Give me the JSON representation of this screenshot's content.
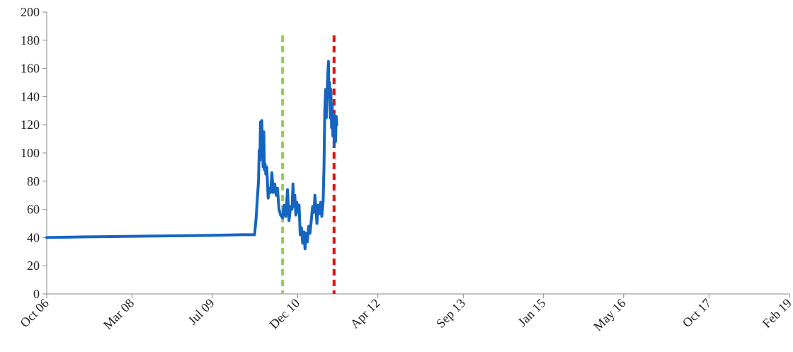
{
  "chart_data": {
    "type": "line",
    "title": "",
    "xlabel": "",
    "ylabel": "",
    "ylim": [
      0,
      200
    ],
    "yticks": [
      0,
      20,
      40,
      60,
      80,
      100,
      120,
      140,
      160,
      180,
      200
    ],
    "xlim": [
      "2006-10-01",
      "2019-02-01"
    ],
    "xtick_labels": [
      "Oct 06",
      "Mar 08",
      "Jul 09",
      "Dec 10",
      "Apr 12",
      "Sep 13",
      "Jan 15",
      "May 16",
      "Oct 17",
      "Feb 19"
    ],
    "xtick_dates": [
      "2006-10-01",
      "2008-03-01",
      "2009-07-01",
      "2010-12-01",
      "2012-04-01",
      "2013-09-01",
      "2015-01-01",
      "2016-05-01",
      "2017-10-01",
      "2019-02-01"
    ],
    "grid": false,
    "legend": "none",
    "series": [
      {
        "color": "#1565C0",
        "points": [
          [
            "2006-10-01",
            40
          ],
          [
            "2007-06-01",
            40.5
          ],
          [
            "2008-06-01",
            41
          ],
          [
            "2009-06-01",
            41.5
          ],
          [
            "2010-01-01",
            42
          ],
          [
            "2010-03-15",
            42
          ],
          [
            "2010-03-25",
            55
          ],
          [
            "2010-04-01",
            68
          ],
          [
            "2010-04-08",
            80
          ],
          [
            "2010-04-12",
            102
          ],
          [
            "2010-04-16",
            95
          ],
          [
            "2010-04-20",
            122
          ],
          [
            "2010-04-24",
            110
          ],
          [
            "2010-04-28",
            123
          ],
          [
            "2010-05-02",
            100
          ],
          [
            "2010-05-06",
            90
          ],
          [
            "2010-05-10",
            115
          ],
          [
            "2010-05-14",
            88
          ],
          [
            "2010-05-18",
            92
          ],
          [
            "2010-05-22",
            85
          ],
          [
            "2010-05-28",
            90
          ],
          [
            "2010-06-05",
            68
          ],
          [
            "2010-06-12",
            75
          ],
          [
            "2010-06-20",
            72
          ],
          [
            "2010-06-28",
            86
          ],
          [
            "2010-07-06",
            72
          ],
          [
            "2010-07-15",
            78
          ],
          [
            "2010-07-24",
            70
          ],
          [
            "2010-08-01",
            75
          ],
          [
            "2010-08-10",
            60
          ],
          [
            "2010-08-20",
            56
          ],
          [
            "2010-09-01",
            54
          ],
          [
            "2010-09-10",
            63
          ],
          [
            "2010-09-20",
            55
          ],
          [
            "2010-10-01",
            74
          ],
          [
            "2010-10-10",
            52
          ],
          [
            "2010-10-20",
            62
          ],
          [
            "2010-10-28",
            60
          ],
          [
            "2010-11-03",
            78
          ],
          [
            "2010-11-08",
            62
          ],
          [
            "2010-11-14",
            70
          ],
          [
            "2010-11-20",
            56
          ],
          [
            "2010-11-26",
            65
          ],
          [
            "2010-12-03",
            58
          ],
          [
            "2010-12-10",
            63
          ],
          [
            "2010-12-17",
            42
          ],
          [
            "2010-12-24",
            47
          ],
          [
            "2011-01-01",
            36
          ],
          [
            "2011-01-08",
            44
          ],
          [
            "2011-01-15",
            32
          ],
          [
            "2011-01-22",
            43
          ],
          [
            "2011-01-29",
            37
          ],
          [
            "2011-02-06",
            48
          ],
          [
            "2011-02-14",
            43
          ],
          [
            "2011-02-22",
            52
          ],
          [
            "2011-03-02",
            62
          ],
          [
            "2011-03-10",
            58
          ],
          [
            "2011-03-16",
            70
          ],
          [
            "2011-03-22",
            60
          ],
          [
            "2011-03-28",
            50
          ],
          [
            "2011-04-05",
            63
          ],
          [
            "2011-04-12",
            57
          ],
          [
            "2011-04-20",
            65
          ],
          [
            "2011-04-27",
            55
          ],
          [
            "2011-05-05",
            66
          ],
          [
            "2011-05-10",
            90
          ],
          [
            "2011-05-15",
            130
          ],
          [
            "2011-05-20",
            145
          ],
          [
            "2011-05-24",
            125
          ],
          [
            "2011-05-28",
            140
          ],
          [
            "2011-06-02",
            155
          ],
          [
            "2011-06-06",
            165
          ],
          [
            "2011-06-09",
            140
          ],
          [
            "2011-06-13",
            150
          ],
          [
            "2011-06-17",
            125
          ],
          [
            "2011-06-21",
            145
          ],
          [
            "2011-06-25",
            118
          ],
          [
            "2011-06-29",
            135
          ],
          [
            "2011-07-03",
            112
          ],
          [
            "2011-07-07",
            127
          ],
          [
            "2011-07-11",
            105
          ],
          [
            "2011-07-15",
            122
          ],
          [
            "2011-07-19",
            108
          ],
          [
            "2011-07-23",
            126
          ],
          [
            "2011-07-27",
            120
          ]
        ]
      }
    ],
    "vertical_lines": [
      {
        "date": "2010-09-01",
        "color": "#92D050",
        "style": "dashed"
      },
      {
        "date": "2011-07-10",
        "color": "#FF0000",
        "style": "dashed"
      }
    ]
  }
}
